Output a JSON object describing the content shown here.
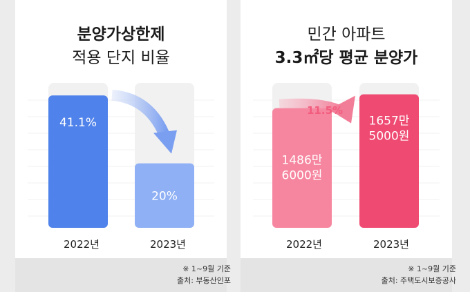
{
  "chart_data": [
    {
      "type": "bar",
      "title_line1": "분양가상한제",
      "title_line2": "적용 단지 비율",
      "categories": [
        "2022년",
        "2023년"
      ],
      "values": [
        41.1,
        20
      ],
      "value_labels": [
        "41.1%",
        "20%"
      ],
      "ylim": [
        0,
        45
      ],
      "colors": [
        "#4f82ea",
        "#8fb0f4"
      ],
      "trend": "down",
      "footnote_1": "※ 1~9월 기준",
      "footnote_2": "출처: 부동산인포"
    },
    {
      "type": "bar",
      "title_line1": "민간 아파트",
      "title_line2": "3.3㎡당 평균 분양가",
      "categories": [
        "2022년",
        "2023년"
      ],
      "values": [
        14866000,
        16575000
      ],
      "value_labels": [
        [
          "1486만",
          "6000원"
        ],
        [
          "1657만",
          "5000원"
        ]
      ],
      "change_label": "11.5%",
      "ylim": [
        0,
        18000000
      ],
      "colors": [
        "#f6869f",
        "#ef4a72"
      ],
      "trend": "up",
      "footnote_1": "※ 1~9월 기준",
      "footnote_2": "출처: 주택도시보증공사"
    }
  ]
}
